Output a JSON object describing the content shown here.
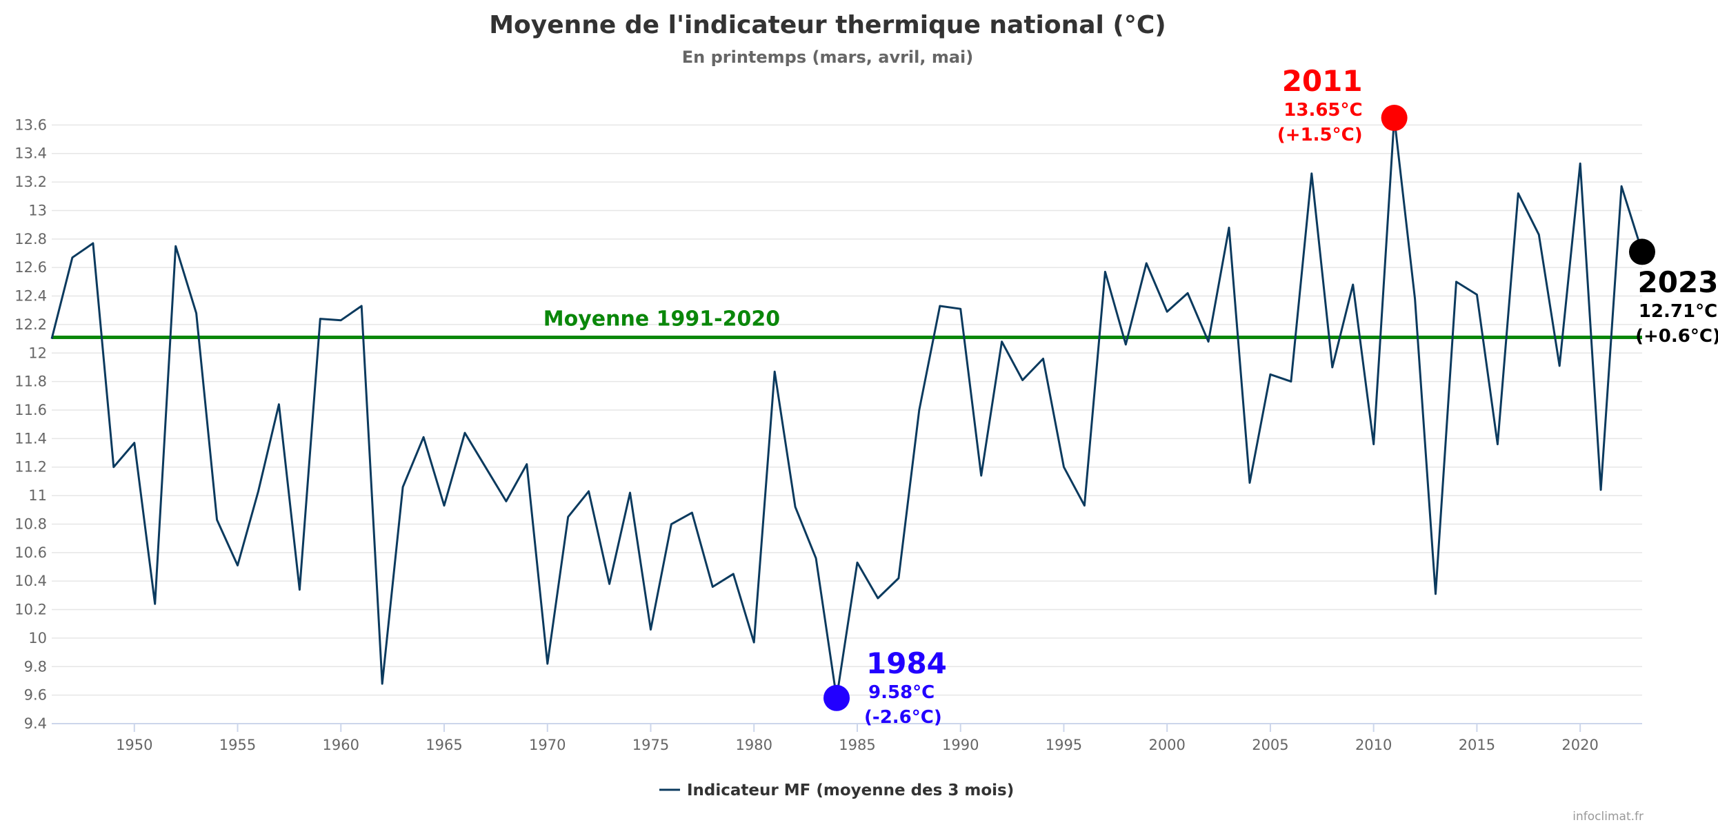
{
  "colors": {
    "series": "#0b3a5e",
    "average": "#0a870a",
    "max": "#ff0000",
    "min": "#2200ff",
    "last": "#000000",
    "grid": "#e6e6e6",
    "axis": "#ccd6eb"
  },
  "chart_data": {
    "type": "line",
    "title": "Moyenne de l'indicateur thermique national (°C)",
    "subtitle": "En printemps (mars, avril, mai)",
    "xlabel": "",
    "ylabel": "",
    "xlim": [
      1946,
      2023
    ],
    "ylim": [
      9.4,
      13.8
    ],
    "y_ticks": [
      9.4,
      9.6,
      9.8,
      10,
      10.2,
      10.4,
      10.6,
      10.8,
      11,
      11.2,
      11.4,
      11.6,
      11.8,
      12,
      12.2,
      12.4,
      12.6,
      12.8,
      13,
      13.2,
      13.4,
      13.6
    ],
    "x_ticks": [
      1950,
      1955,
      1960,
      1965,
      1970,
      1975,
      1980,
      1985,
      1990,
      1995,
      2000,
      2005,
      2010,
      2015,
      2020
    ],
    "grid": "horizontal",
    "legend_position": "bottom-center",
    "series": [
      {
        "name": "Indicateur MF (moyenne des 3 mois)",
        "x": [
          1946,
          1947,
          1948,
          1949,
          1950,
          1951,
          1952,
          1953,
          1954,
          1955,
          1956,
          1957,
          1958,
          1959,
          1960,
          1961,
          1962,
          1963,
          1964,
          1965,
          1966,
          1967,
          1968,
          1969,
          1970,
          1971,
          1972,
          1973,
          1974,
          1975,
          1976,
          1977,
          1978,
          1979,
          1980,
          1981,
          1982,
          1983,
          1984,
          1985,
          1986,
          1987,
          1988,
          1989,
          1990,
          1991,
          1992,
          1993,
          1994,
          1995,
          1996,
          1997,
          1998,
          1999,
          2000,
          2001,
          2002,
          2003,
          2004,
          2005,
          2006,
          2007,
          2008,
          2009,
          2010,
          2011,
          2012,
          2013,
          2014,
          2015,
          2016,
          2017,
          2018,
          2019,
          2020,
          2021,
          2022,
          2023
        ],
        "values": [
          12.1,
          12.67,
          12.77,
          11.2,
          11.37,
          10.24,
          12.75,
          12.28,
          10.83,
          10.51,
          11.03,
          11.64,
          10.34,
          12.24,
          12.23,
          12.33,
          9.68,
          11.06,
          11.41,
          10.93,
          11.44,
          11.2,
          10.96,
          11.22,
          9.82,
          10.85,
          11.03,
          10.38,
          11.02,
          10.06,
          10.8,
          10.88,
          10.36,
          10.45,
          9.97,
          11.87,
          10.92,
          10.56,
          9.58,
          10.53,
          10.28,
          10.42,
          11.6,
          12.33,
          12.31,
          11.14,
          12.08,
          11.81,
          11.96,
          11.2,
          10.93,
          12.57,
          12.06,
          12.63,
          12.29,
          12.42,
          12.08,
          12.88,
          11.09,
          11.85,
          11.8,
          13.26,
          11.9,
          12.48,
          11.36,
          13.65,
          12.38,
          10.31,
          12.5,
          12.41,
          11.36,
          13.12,
          12.83,
          11.91,
          13.33,
          11.04,
          13.17,
          12.71
        ]
      }
    ],
    "reference_line": {
      "label": "Moyenne 1991-2020",
      "value": 12.11
    },
    "annotations": [
      {
        "year_label": "2011",
        "value_label": "13.65°C",
        "anomaly_label": "(+1.5°C)",
        "x": 2011,
        "y": 13.65
      },
      {
        "year_label": "1984",
        "value_label": "9.58°C",
        "anomaly_label": "(-2.6°C)",
        "x": 1984,
        "y": 9.58
      },
      {
        "year_label": "2023",
        "value_label": "12.71°C",
        "anomaly_label": "(+0.6°C)",
        "x": 2023,
        "y": 12.71
      }
    ]
  },
  "credit": "infoclimat.fr"
}
